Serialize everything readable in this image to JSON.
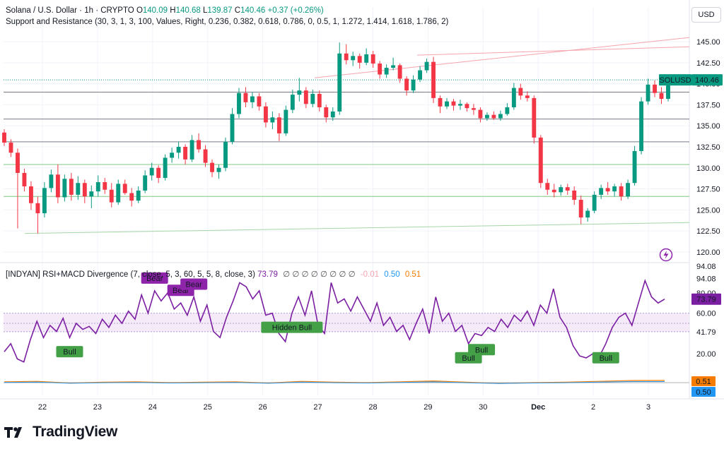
{
  "header": {
    "symbol": "Solana / U.S. Dollar · 1h · CRYPTO",
    "o_label": "O",
    "o_value": "140.09",
    "h_label": "H",
    "h_value": "140.68",
    "l_label": "L",
    "l_value": "139.87",
    "c_label": "C",
    "c_value": "140.46",
    "change": "+0.37 (+0.26%)",
    "indicator": "Support and Resistance (30, 3, 1, 3, 100, Values, Right, 0.236, 0.382, 0.618, 0.786, 0, 0.5, 1, 1.272, 1.414, 1.618, 1.786, 2)"
  },
  "currency": "USD",
  "price_tag": {
    "symbol": "SOLUSD",
    "value": "140.46"
  },
  "rsi_header": {
    "title": "[INDYAN] RSI+MACD Divergence (7, close, 5, 3, 60, 5, 5, 8, close, 3)",
    "value": "73.79",
    "empties": "∅ ∅ ∅ ∅ ∅ ∅ ∅ ∅",
    "macd_a": "-0.01",
    "macd_b": "0.50",
    "macd_c": "0.51"
  },
  "chart_data": [
    {
      "type": "candlestick",
      "title": "Solana / U.S. Dollar · 1h · CRYPTO",
      "x_ticks": [
        "22",
        "23",
        "24",
        "25",
        "26",
        "27",
        "28",
        "29",
        "30",
        "Dec",
        "2",
        "3"
      ],
      "y_ticks": [
        "145.00",
        "142.50",
        "140.00",
        "137.50",
        "135.00",
        "132.50",
        "130.00",
        "127.50",
        "125.00",
        "122.50",
        "120.00"
      ],
      "ylim": [
        118.9,
        146.6
      ],
      "last_price": 140.46,
      "ohlc": [
        [
          134.2,
          134.6,
          132.6,
          133.0
        ],
        [
          133.0,
          133.4,
          131.3,
          131.8
        ],
        [
          131.8,
          132.3,
          122.8,
          129.4
        ],
        [
          129.4,
          129.9,
          127.2,
          127.8
        ],
        [
          127.8,
          128.4,
          125.0,
          125.8
        ],
        [
          125.8,
          126.6,
          122.2,
          124.6
        ],
        [
          124.6,
          128.3,
          124.1,
          127.6
        ],
        [
          127.6,
          129.8,
          127.1,
          129.2
        ],
        [
          129.2,
          130.4,
          125.8,
          126.5
        ],
        [
          126.5,
          129.2,
          126.0,
          128.7
        ],
        [
          128.7,
          129.4,
          126.1,
          126.8
        ],
        [
          126.8,
          129.0,
          126.2,
          128.2
        ],
        [
          128.2,
          128.6,
          125.8,
          126.6
        ],
        [
          126.6,
          127.9,
          125.2,
          127.2
        ],
        [
          127.2,
          129.1,
          126.6,
          128.3
        ],
        [
          128.3,
          128.8,
          126.9,
          127.4
        ],
        [
          127.4,
          128.2,
          125.3,
          125.9
        ],
        [
          125.9,
          128.6,
          125.6,
          128.1
        ],
        [
          128.1,
          128.6,
          126.8,
          127.0
        ],
        [
          127.0,
          127.6,
          125.4,
          126.1
        ],
        [
          126.1,
          127.8,
          125.8,
          127.3
        ],
        [
          127.3,
          129.7,
          127.0,
          129.1
        ],
        [
          129.1,
          130.6,
          128.5,
          130.0
        ],
        [
          130.0,
          130.3,
          128.2,
          128.8
        ],
        [
          128.8,
          131.6,
          128.5,
          131.2
        ],
        [
          131.2,
          132.4,
          130.6,
          131.8
        ],
        [
          131.8,
          133.1,
          131.1,
          132.5
        ],
        [
          132.5,
          132.8,
          130.4,
          131.0
        ],
        [
          131.0,
          133.9,
          130.7,
          133.3
        ],
        [
          133.3,
          134.1,
          131.8,
          132.2
        ],
        [
          132.2,
          132.7,
          130.1,
          130.6
        ],
        [
          130.6,
          131.0,
          128.9,
          129.5
        ],
        [
          129.5,
          130.4,
          128.7,
          130.0
        ],
        [
          130.0,
          133.6,
          129.6,
          133.1
        ],
        [
          133.1,
          137.1,
          132.8,
          136.4
        ],
        [
          136.4,
          139.5,
          135.9,
          138.9
        ],
        [
          138.9,
          139.6,
          137.2,
          137.8
        ],
        [
          137.8,
          139.0,
          137.1,
          138.5
        ],
        [
          138.5,
          138.9,
          136.8,
          137.3
        ],
        [
          137.3,
          137.8,
          134.8,
          135.4
        ],
        [
          135.4,
          136.7,
          134.6,
          136.0
        ],
        [
          136.0,
          136.5,
          133.2,
          134.1
        ],
        [
          134.1,
          137.4,
          133.8,
          136.9
        ],
        [
          136.9,
          139.3,
          136.5,
          138.7
        ],
        [
          138.7,
          140.7,
          137.9,
          139.2
        ],
        [
          139.2,
          139.6,
          137.1,
          137.6
        ],
        [
          137.6,
          139.3,
          137.2,
          138.8
        ],
        [
          138.8,
          139.2,
          136.7,
          137.2
        ],
        [
          137.2,
          137.5,
          135.4,
          136.0
        ],
        [
          136.0,
          137.2,
          135.6,
          136.7
        ],
        [
          136.7,
          144.9,
          136.3,
          143.6
        ],
        [
          143.6,
          144.7,
          142.3,
          142.8
        ],
        [
          142.8,
          143.8,
          142.1,
          143.3
        ],
        [
          143.3,
          143.6,
          141.8,
          142.5
        ],
        [
          142.5,
          144.2,
          142.2,
          143.5
        ],
        [
          143.5,
          143.9,
          141.9,
          142.4
        ],
        [
          142.4,
          142.7,
          140.6,
          141.1
        ],
        [
          141.1,
          142.3,
          140.7,
          141.9
        ],
        [
          141.9,
          143.1,
          141.6,
          142.2
        ],
        [
          142.2,
          142.4,
          140.1,
          140.6
        ],
        [
          140.6,
          140.9,
          138.6,
          139.2
        ],
        [
          139.2,
          141.0,
          138.9,
          140.5
        ],
        [
          140.5,
          142.1,
          140.2,
          141.6
        ],
        [
          141.6,
          143.0,
          141.3,
          142.6
        ],
        [
          142.6,
          143.2,
          137.7,
          138.3
        ],
        [
          138.3,
          138.6,
          136.5,
          137.3
        ],
        [
          137.3,
          138.3,
          137.0,
          137.9
        ],
        [
          137.9,
          138.2,
          136.8,
          137.4
        ],
        [
          137.4,
          138.1,
          136.9,
          137.6
        ],
        [
          137.6,
          137.8,
          136.7,
          137.1
        ],
        [
          137.1,
          137.6,
          136.3,
          136.9
        ],
        [
          136.9,
          137.2,
          135.4,
          135.9
        ],
        [
          135.9,
          136.6,
          135.6,
          136.3
        ],
        [
          136.3,
          136.7,
          135.7,
          135.9
        ],
        [
          135.9,
          136.8,
          135.6,
          136.4
        ],
        [
          136.4,
          137.7,
          136.2,
          137.2
        ],
        [
          137.2,
          140.1,
          136.9,
          139.5
        ],
        [
          139.5,
          140.0,
          138.1,
          138.6
        ],
        [
          138.6,
          139.1,
          137.9,
          138.3
        ],
        [
          138.3,
          138.6,
          132.9,
          133.6
        ],
        [
          133.6,
          133.9,
          127.6,
          128.2
        ],
        [
          128.2,
          128.7,
          126.8,
          127.4
        ],
        [
          127.4,
          128.1,
          126.5,
          127.1
        ],
        [
          127.1,
          128.0,
          126.7,
          127.7
        ],
        [
          127.7,
          128.1,
          126.8,
          127.3
        ],
        [
          127.3,
          127.8,
          125.6,
          126.2
        ],
        [
          126.2,
          126.7,
          123.3,
          124.1
        ],
        [
          124.1,
          125.2,
          123.6,
          124.9
        ],
        [
          124.9,
          127.2,
          124.6,
          126.8
        ],
        [
          126.8,
          128.0,
          126.3,
          127.6
        ],
        [
          127.6,
          128.3,
          126.8,
          127.2
        ],
        [
          127.2,
          128.1,
          126.6,
          127.8
        ],
        [
          127.8,
          128.2,
          126.1,
          126.6
        ],
        [
          126.6,
          128.6,
          126.3,
          128.2
        ],
        [
          128.2,
          132.6,
          127.9,
          132.0
        ],
        [
          132.0,
          138.4,
          131.6,
          137.9
        ],
        [
          137.9,
          140.6,
          137.5,
          139.9
        ],
        [
          139.9,
          140.4,
          138.4,
          138.9
        ],
        [
          138.9,
          139.6,
          137.6,
          138.2
        ],
        [
          138.2,
          140.7,
          137.9,
          140.46
        ]
      ],
      "support_resistance_levels": [
        139.0,
        135.8,
        133.1,
        130.4,
        126.6
      ],
      "trendlines": {
        "upper": [
          140.7,
          145.5
        ],
        "lower": [
          122.2,
          123.5
        ]
      }
    },
    {
      "type": "line",
      "title": "[INDYAN] RSI+MACD Divergence (7, close, 5, 3, 60, 5, 5, 8, close, 3)",
      "y_ticks": [
        "94.08",
        "80.00",
        "60.00",
        "41.79",
        "20.00"
      ],
      "ylim": [
        0,
        100
      ],
      "band": [
        41.79,
        60.0
      ],
      "last_value": 73.79,
      "rsi": [
        22,
        30,
        15,
        12,
        34,
        52,
        36,
        48,
        42,
        55,
        36,
        50,
        44,
        47,
        40,
        54,
        46,
        58,
        50,
        62,
        54,
        78,
        60,
        82,
        72,
        80,
        64,
        70,
        58,
        76,
        52,
        68,
        42,
        36,
        56,
        72,
        90,
        86,
        74,
        82,
        58,
        60,
        40,
        32,
        60,
        76,
        58,
        82,
        48,
        40,
        90,
        70,
        74,
        62,
        76,
        64,
        52,
        70,
        48,
        56,
        42,
        48,
        34,
        50,
        64,
        40,
        76,
        52,
        60,
        42,
        48,
        30,
        40,
        38,
        46,
        42,
        54,
        46,
        58,
        52,
        62,
        48,
        68,
        60,
        84,
        56,
        46,
        28,
        18,
        16,
        20,
        17,
        30,
        46,
        56,
        60,
        48,
        70,
        92,
        76,
        70,
        73.79
      ],
      "macd": [
        0.2,
        0.3,
        -0.1,
        0.1,
        0.2,
        0.0,
        0.1,
        0.2,
        -0.1,
        0.3,
        0.1,
        0.0,
        0.2,
        0.4,
        0.1,
        -0.2,
        0.0,
        0.1,
        0.3,
        0.5,
        0.51
      ],
      "labels": [
        {
          "text": "Bull",
          "kind": "bull",
          "at": 10
        },
        {
          "text": "Bear",
          "kind": "bear",
          "at": 23
        },
        {
          "text": "Bear",
          "kind": "bear",
          "at": 27
        },
        {
          "text": "Bear",
          "kind": "bear",
          "at": 29
        },
        {
          "text": "Hidden Bull",
          "kind": "bull",
          "at": 44
        },
        {
          "text": "Bull",
          "kind": "bull",
          "at": 71
        },
        {
          "text": "Bull",
          "kind": "bull",
          "at": 73
        },
        {
          "text": "Bull",
          "kind": "bull",
          "at": 92
        }
      ],
      "tags": [
        {
          "value": "0.51",
          "color": "#f57c00"
        },
        {
          "value": "0.50",
          "color": "#2196f3"
        }
      ]
    }
  ],
  "brand": {
    "name": "TradingView"
  },
  "colors": {
    "up": "#089981",
    "down": "#f23645",
    "rsi": "#7b1fa2",
    "bull": "#43a047",
    "bear": "#8e24aa",
    "grid": "#f0f3fa"
  }
}
